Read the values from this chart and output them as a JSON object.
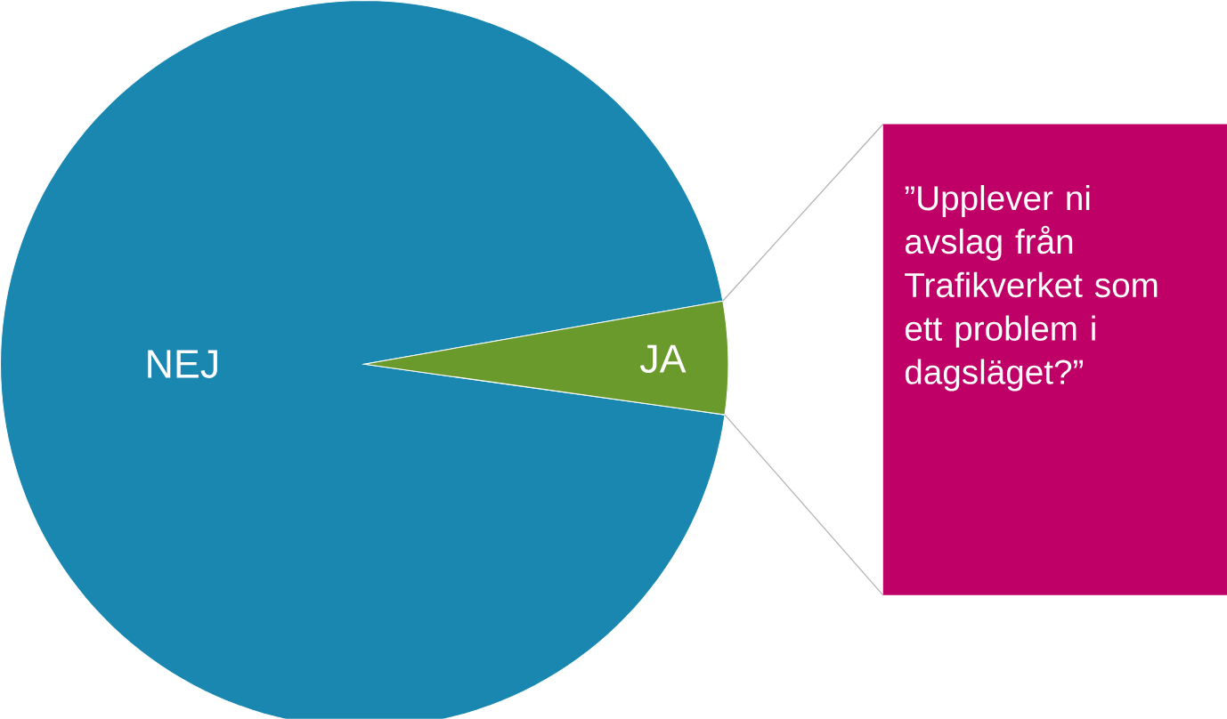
{
  "chart_data": {
    "type": "pie",
    "categories": [
      "NEJ",
      "JA"
    ],
    "values": [
      95,
      5
    ],
    "colors": [
      "#1a87b0",
      "#6a9a2c"
    ],
    "annotations": [
      "”Upplever ni avslag från Trafikverket som ett problem i dagsläget?”"
    ]
  }
}
